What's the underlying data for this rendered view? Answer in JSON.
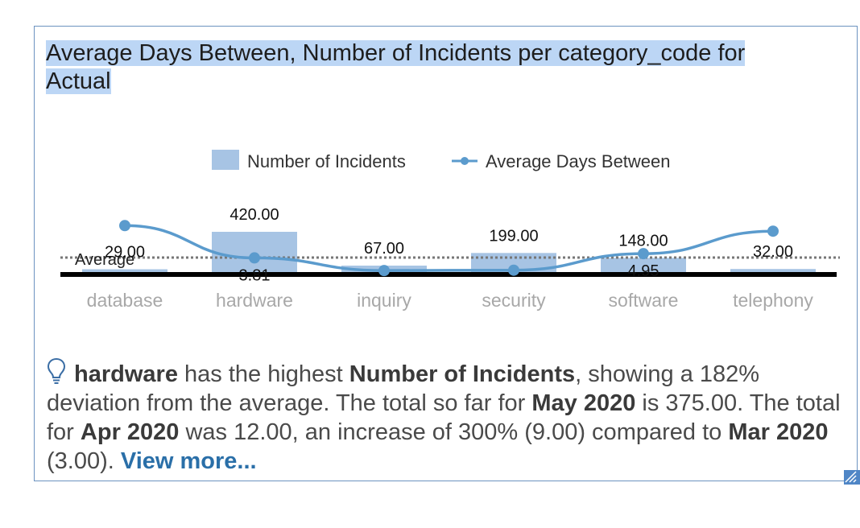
{
  "card": {
    "title": "Average Days Between, Number of Incidents per category_code for Actual"
  },
  "legend": {
    "incidents_label": "Number of Incidents",
    "days_label": "Average Days Between"
  },
  "chart_data": {
    "type": "bar",
    "categories": [
      "database",
      "hardware",
      "inquiry",
      "security",
      "software",
      "telephony"
    ],
    "series": [
      {
        "name": "Number of Incidents",
        "type": "bar",
        "values": [
          29.0,
          420.0,
          67.0,
          199.0,
          148.0,
          32.0
        ],
        "labels": [
          "29.00",
          "420.00",
          "67.00",
          "199.00",
          "148.00",
          "32.00"
        ]
      },
      {
        "name": "Average Days Between",
        "type": "line",
        "values": [
          12.5,
          3.81,
          0.4,
          0.5,
          4.95,
          11.0
        ],
        "labels": [
          "",
          "3.81",
          "",
          "",
          "4.95",
          ""
        ]
      }
    ],
    "reference_line": {
      "label": "Average"
    },
    "colors": {
      "bar": "#a7c4e4",
      "line": "#5b9bcd",
      "axis": "#000000",
      "category": "#a8a8a8"
    }
  },
  "insight": {
    "category": "hardware",
    "t1": " has the highest ",
    "measure": "Number of Incidents",
    "t2": ", showing a 182% deviation from the average. The total so far for ",
    "period1": "May 2020",
    "t3": " is 375.00. The total for ",
    "period2": "Apr 2020",
    "t4": " was 12.00, an increase of 300% (9.00) compared to ",
    "period3": "Mar 2020",
    "t5": " (3.00). ",
    "link": "View more..."
  },
  "icons": {
    "insight": "lightbulb-icon",
    "resize": "resize-grip-icon"
  }
}
